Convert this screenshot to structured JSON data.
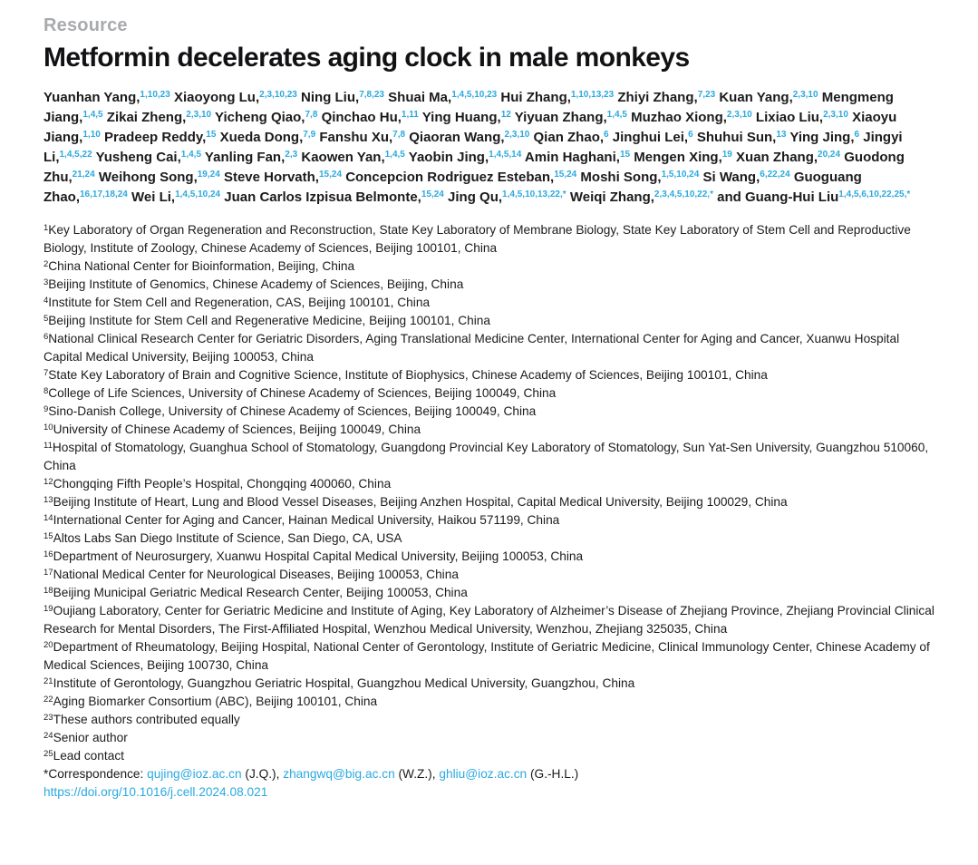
{
  "kicker": "Resource",
  "title": "Metformin decelerates aging clock in male monkeys",
  "colors": {
    "accent": "#2aa9e0",
    "kicker": "#a8aaad",
    "text": "#1b1b1d"
  },
  "authors": [
    {
      "name": "Yuanhan Yang,",
      "sup": "1,10,23"
    },
    {
      "name": "Xiaoyong Lu,",
      "sup": "2,3,10,23"
    },
    {
      "name": "Ning Liu,",
      "sup": "7,8,23"
    },
    {
      "name": "Shuai Ma,",
      "sup": "1,4,5,10,23"
    },
    {
      "name": "Hui Zhang,",
      "sup": "1,10,13,23"
    },
    {
      "name": "Zhiyi Zhang,",
      "sup": "7,23"
    },
    {
      "name": "Kuan Yang,",
      "sup": "2,3,10"
    },
    {
      "name": "Mengmeng Jiang,",
      "sup": "1,4,5"
    },
    {
      "name": "Zikai Zheng,",
      "sup": "2,3,10"
    },
    {
      "name": "Yicheng Qiao,",
      "sup": "7,8"
    },
    {
      "name": "Qinchao Hu,",
      "sup": "1,11"
    },
    {
      "name": "Ying Huang,",
      "sup": "12"
    },
    {
      "name": "Yiyuan Zhang,",
      "sup": "1,4,5"
    },
    {
      "name": "Muzhao Xiong,",
      "sup": "2,3,10"
    },
    {
      "name": "Lixiao Liu,",
      "sup": "2,3,10"
    },
    {
      "name": "Xiaoyu Jiang,",
      "sup": "1,10"
    },
    {
      "name": "Pradeep Reddy,",
      "sup": "15"
    },
    {
      "name": "Xueda Dong,",
      "sup": "7,9"
    },
    {
      "name": "Fanshu Xu,",
      "sup": "7,8"
    },
    {
      "name": "Qiaoran Wang,",
      "sup": "2,3,10"
    },
    {
      "name": "Qian Zhao,",
      "sup": "6"
    },
    {
      "name": "Jinghui Lei,",
      "sup": "6"
    },
    {
      "name": "Shuhui Sun,",
      "sup": "13"
    },
    {
      "name": "Ying Jing,",
      "sup": "6"
    },
    {
      "name": "Jingyi Li,",
      "sup": "1,4,5,22"
    },
    {
      "name": "Yusheng Cai,",
      "sup": "1,4,5"
    },
    {
      "name": "Yanling Fan,",
      "sup": "2,3"
    },
    {
      "name": "Kaowen Yan,",
      "sup": "1,4,5"
    },
    {
      "name": "Yaobin Jing,",
      "sup": "1,4,5,14"
    },
    {
      "name": "Amin Haghani,",
      "sup": "15"
    },
    {
      "name": "Mengen Xing,",
      "sup": "19"
    },
    {
      "name": "Xuan Zhang,",
      "sup": "20,24"
    },
    {
      "name": "Guodong Zhu,",
      "sup": "21,24"
    },
    {
      "name": "Weihong Song,",
      "sup": "19,24"
    },
    {
      "name": "Steve Horvath,",
      "sup": "15,24"
    },
    {
      "name": "Concepcion Rodriguez Esteban,",
      "sup": "15,24"
    },
    {
      "name": "Moshi Song,",
      "sup": "1,5,10,24"
    },
    {
      "name": "Si Wang,",
      "sup": "6,22,24"
    },
    {
      "name": "Guoguang Zhao,",
      "sup": "16,17,18,24"
    },
    {
      "name": "Wei Li,",
      "sup": "1,4,5,10,24"
    },
    {
      "name": "Juan Carlos Izpisua Belmonte,",
      "sup": "15,24"
    },
    {
      "name": "Jing Qu,",
      "sup": "1,4,5,10,13,22,*"
    },
    {
      "name": "Weiqi Zhang,",
      "sup": "2,3,4,5,10,22,*"
    },
    {
      "name": "and Guang-Hui Liu",
      "sup": "1,4,5,6,10,22,25,*"
    }
  ],
  "affiliations": [
    {
      "sup": "1",
      "text": "Key Laboratory of Organ Regeneration and Reconstruction, State Key Laboratory of Membrane Biology, State Key Laboratory of Stem Cell and Reproductive Biology, Institute of Zoology, Chinese Academy of Sciences, Beijing 100101, China"
    },
    {
      "sup": "2",
      "text": "China National Center for Bioinformation, Beijing, China"
    },
    {
      "sup": "3",
      "text": "Beijing Institute of Genomics, Chinese Academy of Sciences, Beijing, China"
    },
    {
      "sup": "4",
      "text": "Institute for Stem Cell and Regeneration, CAS, Beijing 100101, China"
    },
    {
      "sup": "5",
      "text": "Beijing Institute for Stem Cell and Regenerative Medicine, Beijing 100101, China"
    },
    {
      "sup": "6",
      "text": "National Clinical Research Center for Geriatric Disorders, Aging Translational Medicine Center, International Center for Aging and Cancer, Xuanwu Hospital Capital Medical University, Beijing 100053, China"
    },
    {
      "sup": "7",
      "text": "State Key Laboratory of Brain and Cognitive Science, Institute of Biophysics, Chinese Academy of Sciences, Beijing 100101, China"
    },
    {
      "sup": "8",
      "text": "College of Life Sciences, University of Chinese Academy of Sciences, Beijing 100049, China"
    },
    {
      "sup": "9",
      "text": "Sino-Danish College, University of Chinese Academy of Sciences, Beijing 100049, China"
    },
    {
      "sup": "10",
      "text": "University of Chinese Academy of Sciences, Beijing 100049, China"
    },
    {
      "sup": "11",
      "text": "Hospital of Stomatology, Guanghua School of Stomatology, Guangdong Provincial Key Laboratory of Stomatology, Sun Yat-Sen University, Guangzhou 510060, China"
    },
    {
      "sup": "12",
      "text": "Chongqing Fifth People’s Hospital, Chongqing 400060, China"
    },
    {
      "sup": "13",
      "text": "Beijing Institute of Heart, Lung and Blood Vessel Diseases, Beijing Anzhen Hospital, Capital Medical University, Beijing 100029, China"
    },
    {
      "sup": "14",
      "text": "International Center for Aging and Cancer, Hainan Medical University, Haikou 571199, China"
    },
    {
      "sup": "15",
      "text": "Altos Labs San Diego Institute of Science, San Diego, CA, USA"
    },
    {
      "sup": "16",
      "text": "Department of Neurosurgery, Xuanwu Hospital Capital Medical University, Beijing 100053, China"
    },
    {
      "sup": "17",
      "text": "National Medical Center for Neurological Diseases, Beijing 100053, China"
    },
    {
      "sup": "18",
      "text": "Beijing Municipal Geriatric Medical Research Center, Beijing 100053, China"
    },
    {
      "sup": "19",
      "text": "Oujiang Laboratory, Center for Geriatric Medicine and Institute of Aging, Key Laboratory of Alzheimer’s Disease of Zhejiang Province, Zhejiang Provincial Clinical Research for Mental Disorders, The First-Affiliated Hospital, Wenzhou Medical University, Wenzhou, Zhejiang 325035, China"
    },
    {
      "sup": "20",
      "text": "Department of Rheumatology, Beijing Hospital, National Center of Gerontology, Institute of Geriatric Medicine, Clinical Immunology Center, Chinese Academy of Medical Sciences, Beijing 100730, China"
    },
    {
      "sup": "21",
      "text": "Institute of Gerontology, Guangzhou Geriatric Hospital, Guangzhou Medical University, Guangzhou, China"
    },
    {
      "sup": "22",
      "text": "Aging Biomarker Consortium (ABC), Beijing 100101, China"
    },
    {
      "sup": "23",
      "text": "These authors contributed equally"
    },
    {
      "sup": "24",
      "text": "Senior author"
    },
    {
      "sup": "25",
      "text": "Lead contact"
    }
  ],
  "correspondence": {
    "segments": [
      {
        "text": "*Correspondence: ",
        "link": false
      },
      {
        "text": "qujing@ioz.ac.cn",
        "link": true
      },
      {
        "text": " (J.Q.), ",
        "link": false
      },
      {
        "text": "zhangwq@big.ac.cn",
        "link": true
      },
      {
        "text": " (W.Z.), ",
        "link": false
      },
      {
        "text": "ghliu@ioz.ac.cn",
        "link": true
      },
      {
        "text": " (G.-H.L.)",
        "link": false
      }
    ]
  },
  "doi": "https://doi.org/10.1016/j.cell.2024.08.021"
}
